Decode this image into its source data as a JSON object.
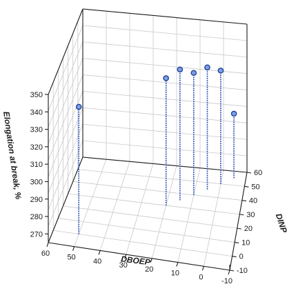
{
  "chart_data": {
    "type": "scatter",
    "title": "",
    "xlabel": "DBOEP",
    "ylabel": "DINP",
    "zlabel": "Elongation at break, %",
    "x_ticks": [
      "60",
      "50",
      "40",
      "30",
      "20",
      "10",
      "0",
      "-10"
    ],
    "y_ticks": [
      "-10",
      "0",
      "10",
      "20",
      "30",
      "40",
      "50",
      "60"
    ],
    "z_ticks": [
      "270",
      "280",
      "290",
      "300",
      "310",
      "320",
      "330",
      "340",
      "350"
    ],
    "xlim": [
      -10,
      60
    ],
    "ylim": [
      -10,
      60
    ],
    "zlim": [
      265,
      350
    ],
    "grid": true,
    "points": [
      {
        "x": 50,
        "y": 0,
        "z": 338
      },
      {
        "x": 20,
        "y": 30,
        "z": 338
      },
      {
        "x": 15,
        "y": 35,
        "z": 340
      },
      {
        "x": 10,
        "y": 40,
        "z": 335
      },
      {
        "x": 5,
        "y": 45,
        "z": 335
      },
      {
        "x": 0,
        "y": 50,
        "z": 330
      },
      {
        "x": -5,
        "y": 55,
        "z": 302
      }
    ],
    "colors": {
      "stem": "#2f55b8",
      "marker_fill": "#7fa1e6",
      "marker_edge": "#1f3f9a"
    }
  }
}
